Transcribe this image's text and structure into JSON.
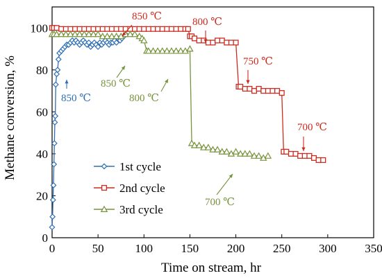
{
  "chart_data": {
    "type": "scatter",
    "title": "",
    "xlabel": "Time on stream, hr",
    "ylabel": "Methane conversion, %",
    "xlim": [
      0,
      350
    ],
    "ylim": [
      0,
      110
    ],
    "xticks": [
      "0",
      "50",
      "100",
      "150",
      "200",
      "250",
      "300",
      "350"
    ],
    "yticks": [
      "0",
      "20",
      "40",
      "60",
      "80",
      "100"
    ],
    "grid": false,
    "legend_position": "bottom-left",
    "series": [
      {
        "name": "1st cycle",
        "color": "#2E6FB5",
        "marker": "diamond",
        "x": [
          0,
          0.5,
          1,
          1.5,
          2,
          2.5,
          3,
          3.5,
          4,
          5,
          6,
          7,
          8,
          10,
          12,
          14,
          16,
          18,
          20,
          22,
          24,
          26,
          28,
          30,
          32,
          34,
          36,
          38,
          40,
          42,
          44,
          46,
          48,
          50,
          52,
          54,
          56,
          58,
          60,
          62,
          64,
          66,
          68,
          70,
          72,
          74,
          76,
          78,
          80
        ],
        "y": [
          5,
          10,
          18,
          25,
          35,
          45,
          55,
          58,
          73,
          78,
          80,
          85,
          88,
          89,
          90,
          91,
          92,
          92,
          93,
          94,
          93,
          94,
          93,
          92,
          93,
          94,
          93,
          92,
          93,
          91,
          92,
          93,
          92,
          91,
          93,
          92,
          93,
          94,
          93,
          92,
          93,
          93,
          94,
          93,
          95,
          94,
          95,
          96,
          97
        ]
      },
      {
        "name": "2nd cycle",
        "color": "#CC2A1E",
        "marker": "square",
        "x": [
          0,
          2,
          5,
          10,
          15,
          20,
          25,
          30,
          35,
          40,
          45,
          50,
          55,
          60,
          65,
          70,
          75,
          80,
          85,
          90,
          95,
          100,
          105,
          110,
          115,
          120,
          125,
          130,
          135,
          140,
          145,
          148,
          150,
          152,
          155,
          160,
          165,
          170,
          175,
          180,
          185,
          190,
          195,
          200,
          203,
          205,
          210,
          215,
          220,
          225,
          230,
          235,
          240,
          245,
          250,
          252,
          255,
          260,
          265,
          270,
          275,
          280,
          285,
          290,
          295
        ],
        "y": [
          100,
          100,
          100,
          99.5,
          99.5,
          99.5,
          99.5,
          99.5,
          99.5,
          99.5,
          99.5,
          99.5,
          99.5,
          99.5,
          99.5,
          99.5,
          99.5,
          99.5,
          99.5,
          99.5,
          99.5,
          99.5,
          99.5,
          99.5,
          99.5,
          99.5,
          99.5,
          99.5,
          99.5,
          99.5,
          99.5,
          99.5,
          96,
          96,
          95,
          94,
          94,
          93,
          93,
          94,
          94,
          93,
          93,
          93,
          72,
          72,
          71,
          71,
          70,
          71,
          70,
          70,
          70,
          70,
          69,
          41,
          41,
          40,
          40,
          39,
          39,
          39,
          38,
          37,
          37
        ]
      },
      {
        "name": "3rd cycle",
        "color": "#77933C",
        "marker": "triangle",
        "x": [
          0,
          2,
          5,
          10,
          15,
          20,
          25,
          30,
          35,
          40,
          45,
          50,
          55,
          60,
          65,
          70,
          75,
          80,
          85,
          90,
          95,
          98,
          100,
          103,
          105,
          110,
          115,
          120,
          125,
          130,
          135,
          140,
          145,
          150,
          152,
          155,
          160,
          165,
          170,
          175,
          180,
          185,
          190,
          195,
          200,
          205,
          210,
          215,
          220,
          225,
          230,
          235
        ],
        "y": [
          97,
          97,
          97,
          97,
          97,
          97,
          97,
          97,
          97,
          97,
          97,
          97,
          96,
          96,
          96,
          96,
          96,
          97,
          97,
          97,
          96,
          95,
          94,
          89,
          89,
          89,
          89,
          89,
          89,
          89,
          89,
          89,
          89,
          90,
          45,
          44,
          44,
          43,
          43,
          42,
          42,
          41,
          41,
          40,
          41,
          40,
          40,
          40,
          39,
          39,
          38,
          39
        ]
      }
    ],
    "annotations": [
      {
        "text": "850 ℃",
        "color": "#2E6FB5"
      },
      {
        "text": "850 ℃",
        "color": "#CC2A1E"
      },
      {
        "text": "850 ℃",
        "color": "#77933C"
      },
      {
        "text": "800 ℃",
        "color": "#CC2A1E"
      },
      {
        "text": "800 ℃",
        "color": "#77933C"
      },
      {
        "text": "750 ℃",
        "color": "#CC2A1E"
      },
      {
        "text": "700 ℃",
        "color": "#CC2A1E"
      },
      {
        "text": "700 ℃",
        "color": "#77933C"
      }
    ]
  }
}
